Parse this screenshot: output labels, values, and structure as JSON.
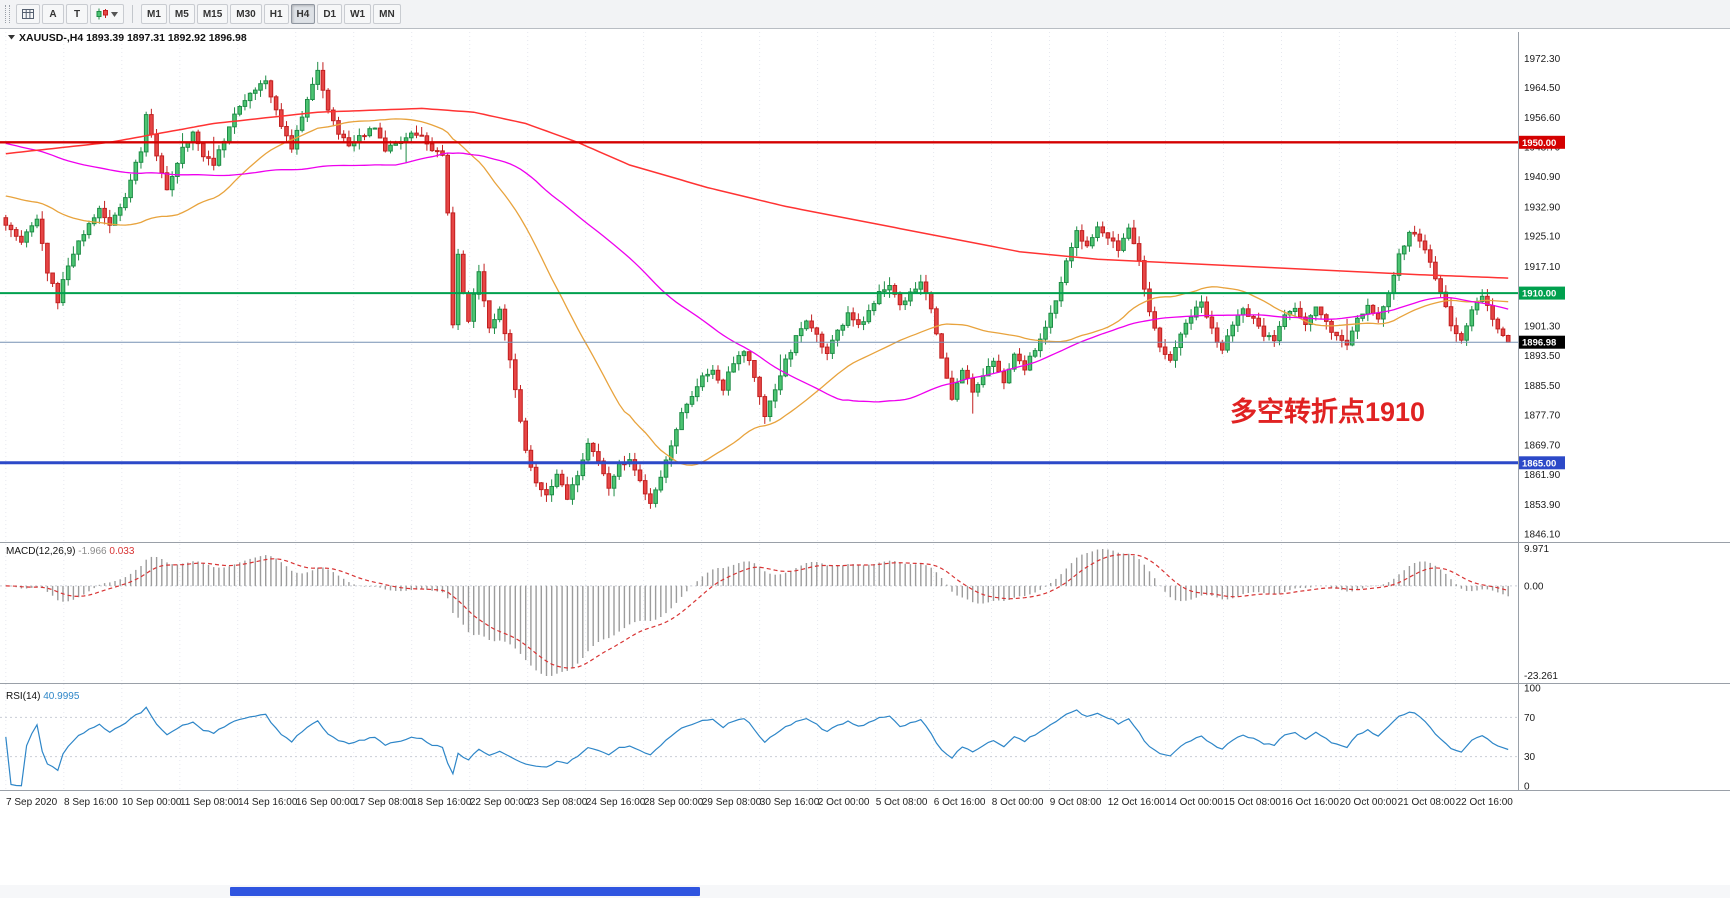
{
  "toolbar": {
    "tools": [
      {
        "label": "",
        "icon": "grid-icon"
      },
      {
        "label": "A"
      },
      {
        "label": "T"
      },
      {
        "label": "",
        "icon": "objects-dropdown-icon"
      }
    ],
    "timeframes": [
      {
        "label": "M1",
        "active": false
      },
      {
        "label": "M5",
        "active": false
      },
      {
        "label": "M15",
        "active": false
      },
      {
        "label": "M30",
        "active": false
      },
      {
        "label": "H1",
        "active": false
      },
      {
        "label": "H4",
        "active": true
      },
      {
        "label": "D1",
        "active": false
      },
      {
        "label": "W1",
        "active": false
      },
      {
        "label": "MN",
        "active": false
      }
    ]
  },
  "chart": {
    "header": {
      "symbol": "XAUUSD-,H4",
      "open": "1893.39",
      "high": "1897.31",
      "low": "1892.92",
      "close": "1896.98"
    },
    "annotation": {
      "text": "多空转折点1910",
      "color": "#e02222"
    },
    "price_axis": {
      "ticks": [
        "1972.30",
        "1964.50",
        "1956.60",
        "1948.70",
        "1940.90",
        "1932.90",
        "1925.10",
        "1917.10",
        "1909.30",
        "1901.30",
        "1893.50",
        "1885.50",
        "1877.70",
        "1869.70",
        "1861.90",
        "1853.90",
        "1846.10"
      ]
    },
    "hlines": [
      {
        "price": 1950.0,
        "label": "1950.00",
        "color": "#d40000",
        "badge": "#d40000",
        "width": 2.4
      },
      {
        "price": 1910.0,
        "label": "1910.00",
        "color": "#00a04e",
        "badge": "#00a04e",
        "width": 2
      },
      {
        "price": 1865.0,
        "label": "1865.00",
        "color": "#2c49c8",
        "badge": "#2c49c8",
        "width": 3
      }
    ],
    "current_price": {
      "value": 1896.98,
      "label": "1896.98",
      "line_color": "#7791b3",
      "badge": "#000000"
    },
    "colors": {
      "up_fill": "#4cc472",
      "up_stroke": "#1e8c46",
      "down_fill": "#e64545",
      "down_stroke": "#c22020",
      "ma_fast": "#e8a33d",
      "ma_mid": "#ee00ee",
      "ma_slow": "#ff3333"
    },
    "price_path": [
      [
        0,
        1928
      ],
      [
        3,
        1924
      ],
      [
        6,
        1930
      ],
      [
        8,
        1916
      ],
      [
        10,
        1908
      ],
      [
        12,
        1918
      ],
      [
        15,
        1926
      ],
      [
        18,
        1932
      ],
      [
        20,
        1928
      ],
      [
        23,
        1936
      ],
      [
        26,
        1948
      ],
      [
        27,
        1958
      ],
      [
        29,
        1946
      ],
      [
        31,
        1938
      ],
      [
        34,
        1948
      ],
      [
        36,
        1953
      ],
      [
        38,
        1946
      ],
      [
        40,
        1944
      ],
      [
        43,
        1954
      ],
      [
        45,
        1960
      ],
      [
        48,
        1964
      ],
      [
        50,
        1967
      ],
      [
        52,
        1958
      ],
      [
        55,
        1948
      ],
      [
        58,
        1962
      ],
      [
        60,
        1969
      ],
      [
        62,
        1958
      ],
      [
        64,
        1952
      ],
      [
        66,
        1949
      ],
      [
        69,
        1952
      ],
      [
        71,
        1954
      ],
      [
        73,
        1948
      ],
      [
        76,
        1950
      ],
      [
        78,
        1953
      ],
      [
        80,
        1951
      ],
      [
        82,
        1948
      ],
      [
        84,
        1946
      ],
      [
        85,
        1932
      ],
      [
        86,
        1902
      ],
      [
        87,
        1921
      ],
      [
        88,
        1910
      ],
      [
        89,
        1903
      ],
      [
        91,
        1915
      ],
      [
        93,
        1900
      ],
      [
        95,
        1905
      ],
      [
        97,
        1893
      ],
      [
        98,
        1884
      ],
      [
        100,
        1868
      ],
      [
        102,
        1860
      ],
      [
        104,
        1856
      ],
      [
        106,
        1862
      ],
      [
        108,
        1855
      ],
      [
        110,
        1862
      ],
      [
        112,
        1870
      ],
      [
        114,
        1866
      ],
      [
        116,
        1858
      ],
      [
        118,
        1864
      ],
      [
        120,
        1866
      ],
      [
        122,
        1860
      ],
      [
        124,
        1854
      ],
      [
        126,
        1861
      ],
      [
        128,
        1870
      ],
      [
        130,
        1878
      ],
      [
        132,
        1882
      ],
      [
        134,
        1888
      ],
      [
        136,
        1890
      ],
      [
        138,
        1885
      ],
      [
        140,
        1892
      ],
      [
        142,
        1895
      ],
      [
        144,
        1888
      ],
      [
        146,
        1878
      ],
      [
        148,
        1884
      ],
      [
        150,
        1892
      ],
      [
        152,
        1898
      ],
      [
        154,
        1903
      ],
      [
        156,
        1899
      ],
      [
        158,
        1894
      ],
      [
        160,
        1900
      ],
      [
        162,
        1904
      ],
      [
        164,
        1901
      ],
      [
        166,
        1905
      ],
      [
        168,
        1910
      ],
      [
        170,
        1912
      ],
      [
        172,
        1907
      ],
      [
        174,
        1910
      ],
      [
        176,
        1913
      ],
      [
        178,
        1906
      ],
      [
        180,
        1892
      ],
      [
        182,
        1882
      ],
      [
        184,
        1890
      ],
      [
        186,
        1884
      ],
      [
        188,
        1888
      ],
      [
        190,
        1892
      ],
      [
        192,
        1887
      ],
      [
        194,
        1893
      ],
      [
        196,
        1890
      ],
      [
        198,
        1895
      ],
      [
        200,
        1901
      ],
      [
        202,
        1908
      ],
      [
        204,
        1918
      ],
      [
        206,
        1926
      ],
      [
        208,
        1922
      ],
      [
        210,
        1928
      ],
      [
        212,
        1925
      ],
      [
        214,
        1922
      ],
      [
        216,
        1927
      ],
      [
        218,
        1918
      ],
      [
        220,
        1905
      ],
      [
        222,
        1896
      ],
      [
        224,
        1892
      ],
      [
        226,
        1899
      ],
      [
        228,
        1904
      ],
      [
        230,
        1907
      ],
      [
        232,
        1900
      ],
      [
        234,
        1895
      ],
      [
        236,
        1901
      ],
      [
        238,
        1906
      ],
      [
        240,
        1903
      ],
      [
        242,
        1899
      ],
      [
        244,
        1897
      ],
      [
        246,
        1904
      ],
      [
        248,
        1906
      ],
      [
        250,
        1902
      ],
      [
        252,
        1906
      ],
      [
        254,
        1902
      ],
      [
        256,
        1898
      ],
      [
        258,
        1897
      ],
      [
        260,
        1903
      ],
      [
        262,
        1907
      ],
      [
        264,
        1903
      ],
      [
        266,
        1910
      ],
      [
        268,
        1920
      ],
      [
        270,
        1926
      ],
      [
        272,
        1924
      ],
      [
        274,
        1918
      ],
      [
        276,
        1910
      ],
      [
        278,
        1902
      ],
      [
        280,
        1897
      ],
      [
        282,
        1905
      ],
      [
        284,
        1909
      ],
      [
        286,
        1903
      ],
      [
        288,
        1898
      ],
      [
        289,
        1897
      ]
    ],
    "ma_slow_path": [
      [
        0,
        1947
      ],
      [
        20,
        1950
      ],
      [
        40,
        1955
      ],
      [
        60,
        1958
      ],
      [
        80,
        1959
      ],
      [
        90,
        1958
      ],
      [
        100,
        1955
      ],
      [
        110,
        1950
      ],
      [
        120,
        1944
      ],
      [
        135,
        1938
      ],
      [
        150,
        1933
      ],
      [
        165,
        1929
      ],
      [
        180,
        1925
      ],
      [
        195,
        1921
      ],
      [
        210,
        1919
      ],
      [
        225,
        1918
      ],
      [
        240,
        1917
      ],
      [
        255,
        1916
      ],
      [
        270,
        1915
      ],
      [
        289,
        1914
      ]
    ]
  },
  "macd": {
    "name": "MACD(12,26,9)",
    "value_main": "-1.966",
    "value_signal": "0.033",
    "ticks": [
      "9.971",
      "0.00",
      "-23.261"
    ],
    "colors": {
      "hist": "#9c9c9c",
      "signal": "#d83434"
    }
  },
  "rsi": {
    "name": "RSI(14)",
    "value": "40.9995",
    "ticks": [
      "100",
      "70",
      "30",
      "0"
    ],
    "levels": [
      70,
      30
    ],
    "color": "#2e86c8"
  },
  "time_axis": {
    "labels": [
      "7 Sep 2020",
      "8 Sep 16:00",
      "10 Sep 00:00",
      "11 Sep 08:00",
      "14 Sep 16:00",
      "16 Sep 00:00",
      "17 Sep 08:00",
      "18 Sep 16:00",
      "22 Sep 00:00",
      "23 Sep 08:00",
      "24 Sep 16:00",
      "28 Sep 00:00",
      "29 Sep 08:00",
      "30 Sep 16:00",
      "2 Oct 00:00",
      "5 Oct 08:00",
      "6 Oct 16:00",
      "8 Oct 00:00",
      "9 Oct 08:00",
      "12 Oct 16:00",
      "14 Oct 00:00",
      "15 Oct 08:00",
      "16 Oct 16:00",
      "20 Oct 00:00",
      "21 Oct 08:00",
      "22 Oct 16:00"
    ]
  },
  "scrollbar": {
    "thumb_color": "#2f55e0"
  }
}
